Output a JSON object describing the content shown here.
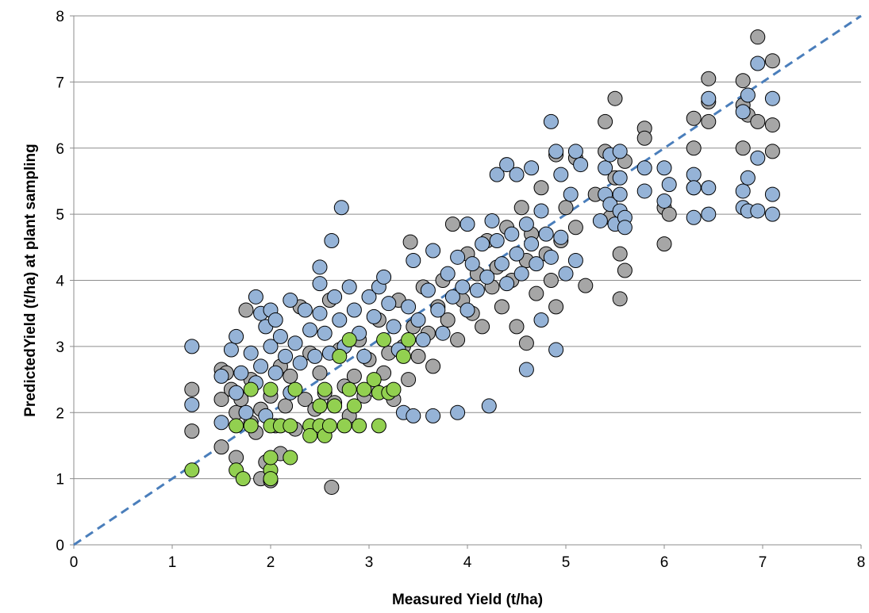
{
  "chart_data": {
    "type": "scatter",
    "title": "",
    "xlabel": "Measured Yield (t/ha)",
    "ylabel": "PredictedYield (t/ha) at plant sampling",
    "xlim": [
      0,
      8
    ],
    "ylim": [
      0,
      8
    ],
    "x_ticks": [
      "0",
      "1",
      "2",
      "3",
      "4",
      "5",
      "6",
      "7",
      "8"
    ],
    "y_ticks": [
      "0",
      "1",
      "2",
      "3",
      "4",
      "5",
      "6",
      "7",
      "8"
    ],
    "grid": "horizontal",
    "legend": "none",
    "reference_line": {
      "from": [
        0,
        0
      ],
      "to": [
        8,
        8
      ],
      "style": "dashed",
      "color": "#4a7ebb"
    },
    "series": [
      {
        "color": "#a6a6a6",
        "points": [
          [
            1.2,
            2.35
          ],
          [
            1.2,
            1.72
          ],
          [
            1.5,
            2.65
          ],
          [
            1.5,
            2.2
          ],
          [
            1.5,
            1.48
          ],
          [
            1.55,
            2.6
          ],
          [
            1.6,
            2.35
          ],
          [
            1.65,
            2.0
          ],
          [
            1.65,
            1.32
          ],
          [
            1.7,
            2.2
          ],
          [
            1.75,
            3.55
          ],
          [
            1.8,
            2.5
          ],
          [
            1.8,
            1.85
          ],
          [
            1.85,
            1.7
          ],
          [
            1.9,
            2.05
          ],
          [
            1.9,
            1.0
          ],
          [
            1.95,
            1.25
          ],
          [
            2.0,
            0.97
          ],
          [
            2.0,
            2.25
          ],
          [
            2.05,
            1.8
          ],
          [
            2.1,
            2.7
          ],
          [
            2.1,
            1.38
          ],
          [
            2.15,
            2.1
          ],
          [
            2.2,
            2.55
          ],
          [
            2.25,
            1.75
          ],
          [
            2.3,
            3.6
          ],
          [
            2.35,
            2.2
          ],
          [
            2.4,
            2.9
          ],
          [
            2.45,
            2.05
          ],
          [
            2.5,
            2.6
          ],
          [
            2.55,
            2.3
          ],
          [
            2.6,
            3.7
          ],
          [
            2.62,
            0.87
          ],
          [
            2.65,
            2.15
          ],
          [
            2.7,
            2.95
          ],
          [
            2.75,
            2.4
          ],
          [
            2.8,
            1.95
          ],
          [
            2.85,
            2.55
          ],
          [
            2.9,
            3.1
          ],
          [
            2.95,
            2.25
          ],
          [
            3.0,
            2.8
          ],
          [
            3.05,
            2.35
          ],
          [
            3.1,
            3.4
          ],
          [
            3.15,
            2.6
          ],
          [
            3.2,
            2.9
          ],
          [
            3.25,
            2.2
          ],
          [
            3.3,
            3.7
          ],
          [
            3.35,
            3.0
          ],
          [
            3.4,
            2.5
          ],
          [
            3.42,
            4.58
          ],
          [
            3.45,
            3.3
          ],
          [
            3.5,
            2.85
          ],
          [
            3.55,
            3.9
          ],
          [
            3.6,
            3.2
          ],
          [
            3.65,
            2.7
          ],
          [
            3.7,
            3.6
          ],
          [
            3.75,
            4.0
          ],
          [
            3.8,
            3.4
          ],
          [
            3.85,
            4.85
          ],
          [
            3.9,
            3.1
          ],
          [
            3.95,
            3.7
          ],
          [
            4.0,
            4.4
          ],
          [
            4.05,
            3.5
          ],
          [
            4.1,
            4.1
          ],
          [
            4.15,
            3.3
          ],
          [
            4.2,
            4.6
          ],
          [
            4.25,
            3.9
          ],
          [
            4.3,
            4.2
          ],
          [
            4.35,
            3.6
          ],
          [
            4.4,
            4.8
          ],
          [
            4.45,
            4.0
          ],
          [
            4.5,
            3.3
          ],
          [
            4.55,
            5.1
          ],
          [
            4.6,
            4.3
          ],
          [
            4.6,
            3.05
          ],
          [
            4.65,
            4.7
          ],
          [
            4.7,
            3.8
          ],
          [
            4.75,
            5.4
          ],
          [
            4.8,
            4.4
          ],
          [
            4.85,
            4.0
          ],
          [
            4.9,
            5.9
          ],
          [
            4.9,
            3.6
          ],
          [
            4.95,
            4.6
          ],
          [
            5.0,
            5.1
          ],
          [
            5.1,
            5.85
          ],
          [
            5.1,
            4.8
          ],
          [
            5.2,
            3.92
          ],
          [
            5.3,
            5.3
          ],
          [
            5.4,
            6.4
          ],
          [
            5.4,
            5.95
          ],
          [
            5.45,
            4.95
          ],
          [
            5.5,
            6.75
          ],
          [
            5.5,
            5.55
          ],
          [
            5.55,
            4.4
          ],
          [
            5.55,
            3.72
          ],
          [
            5.6,
            4.15
          ],
          [
            5.6,
            5.8
          ],
          [
            5.8,
            6.3
          ],
          [
            5.8,
            6.15
          ],
          [
            6.0,
            4.55
          ],
          [
            6.0,
            5.1
          ],
          [
            6.05,
            5.0
          ],
          [
            6.3,
            6.45
          ],
          [
            6.3,
            6.0
          ],
          [
            6.3,
            5.4
          ],
          [
            6.45,
            7.05
          ],
          [
            6.45,
            6.7
          ],
          [
            6.45,
            6.4
          ],
          [
            6.8,
            7.02
          ],
          [
            6.8,
            6.65
          ],
          [
            6.8,
            6.0
          ],
          [
            6.85,
            6.5
          ],
          [
            6.95,
            7.68
          ],
          [
            6.95,
            6.4
          ],
          [
            7.1,
            7.32
          ],
          [
            7.1,
            6.35
          ],
          [
            7.1,
            5.95
          ]
        ]
      },
      {
        "color": "#95b3d7",
        "points": [
          [
            1.2,
            3.0
          ],
          [
            1.2,
            2.12
          ],
          [
            1.5,
            2.55
          ],
          [
            1.5,
            1.85
          ],
          [
            1.6,
            2.95
          ],
          [
            1.65,
            3.15
          ],
          [
            1.65,
            2.3
          ],
          [
            1.7,
            2.6
          ],
          [
            1.75,
            2.0
          ],
          [
            1.8,
            2.9
          ],
          [
            1.85,
            3.75
          ],
          [
            1.85,
            2.45
          ],
          [
            1.9,
            3.5
          ],
          [
            1.9,
            2.7
          ],
          [
            1.95,
            3.3
          ],
          [
            1.95,
            1.95
          ],
          [
            2.0,
            3.55
          ],
          [
            2.0,
            3.0
          ],
          [
            2.05,
            3.4
          ],
          [
            2.05,
            2.6
          ],
          [
            2.1,
            3.15
          ],
          [
            2.15,
            2.85
          ],
          [
            2.2,
            3.7
          ],
          [
            2.2,
            2.3
          ],
          [
            2.25,
            3.05
          ],
          [
            2.3,
            2.75
          ],
          [
            2.35,
            3.55
          ],
          [
            2.4,
            3.25
          ],
          [
            2.45,
            2.85
          ],
          [
            2.5,
            4.2
          ],
          [
            2.5,
            3.95
          ],
          [
            2.5,
            3.5
          ],
          [
            2.55,
            3.2
          ],
          [
            2.6,
            2.9
          ],
          [
            2.62,
            4.6
          ],
          [
            2.65,
            3.75
          ],
          [
            2.7,
            3.4
          ],
          [
            2.72,
            5.1
          ],
          [
            2.75,
            3.0
          ],
          [
            2.8,
            3.9
          ],
          [
            2.85,
            3.55
          ],
          [
            2.9,
            3.2
          ],
          [
            2.95,
            2.85
          ],
          [
            3.0,
            3.75
          ],
          [
            3.05,
            3.45
          ],
          [
            3.1,
            3.9
          ],
          [
            3.15,
            4.05
          ],
          [
            3.2,
            3.65
          ],
          [
            3.25,
            3.3
          ],
          [
            3.3,
            2.95
          ],
          [
            3.35,
            2.0
          ],
          [
            3.4,
            3.6
          ],
          [
            3.45,
            1.95
          ],
          [
            3.45,
            4.3
          ],
          [
            3.5,
            3.4
          ],
          [
            3.55,
            3.1
          ],
          [
            3.6,
            3.85
          ],
          [
            3.65,
            1.95
          ],
          [
            3.65,
            4.45
          ],
          [
            3.7,
            3.55
          ],
          [
            3.75,
            3.2
          ],
          [
            3.8,
            4.1
          ],
          [
            3.85,
            3.75
          ],
          [
            3.9,
            2.0
          ],
          [
            3.9,
            4.35
          ],
          [
            3.95,
            3.9
          ],
          [
            4.0,
            4.85
          ],
          [
            4.0,
            3.55
          ],
          [
            4.05,
            4.25
          ],
          [
            4.1,
            3.85
          ],
          [
            4.15,
            4.55
          ],
          [
            4.2,
            4.05
          ],
          [
            4.22,
            2.1
          ],
          [
            4.25,
            4.9
          ],
          [
            4.3,
            4.6
          ],
          [
            4.3,
            5.6
          ],
          [
            4.35,
            4.25
          ],
          [
            4.4,
            3.95
          ],
          [
            4.4,
            5.75
          ],
          [
            4.45,
            4.7
          ],
          [
            4.5,
            4.4
          ],
          [
            4.5,
            5.6
          ],
          [
            4.55,
            4.1
          ],
          [
            4.6,
            4.85
          ],
          [
            4.6,
            2.65
          ],
          [
            4.65,
            4.55
          ],
          [
            4.65,
            5.7
          ],
          [
            4.7,
            4.25
          ],
          [
            4.75,
            5.05
          ],
          [
            4.75,
            3.4
          ],
          [
            4.8,
            4.7
          ],
          [
            4.85,
            6.4
          ],
          [
            4.85,
            4.35
          ],
          [
            4.9,
            5.95
          ],
          [
            4.9,
            2.95
          ],
          [
            4.95,
            4.65
          ],
          [
            4.95,
            5.6
          ],
          [
            5.0,
            4.1
          ],
          [
            5.05,
            5.3
          ],
          [
            5.1,
            5.95
          ],
          [
            5.1,
            4.3
          ],
          [
            5.15,
            5.75
          ],
          [
            5.35,
            4.9
          ],
          [
            5.4,
            5.7
          ],
          [
            5.4,
            5.3
          ],
          [
            5.45,
            5.9
          ],
          [
            5.45,
            5.15
          ],
          [
            5.5,
            4.85
          ],
          [
            5.55,
            5.55
          ],
          [
            5.55,
            5.3
          ],
          [
            5.55,
            5.05
          ],
          [
            5.55,
            5.95
          ],
          [
            5.6,
            4.95
          ],
          [
            5.6,
            4.8
          ],
          [
            5.8,
            5.7
          ],
          [
            5.8,
            5.35
          ],
          [
            6.0,
            5.2
          ],
          [
            6.0,
            5.7
          ],
          [
            6.05,
            5.45
          ],
          [
            6.3,
            5.6
          ],
          [
            6.3,
            5.4
          ],
          [
            6.3,
            4.95
          ],
          [
            6.45,
            6.75
          ],
          [
            6.45,
            5.4
          ],
          [
            6.45,
            5.0
          ],
          [
            6.8,
            6.55
          ],
          [
            6.8,
            5.35
          ],
          [
            6.8,
            5.1
          ],
          [
            6.85,
            6.8
          ],
          [
            6.85,
            5.55
          ],
          [
            6.85,
            5.05
          ],
          [
            6.95,
            7.28
          ],
          [
            6.95,
            5.85
          ],
          [
            6.95,
            5.05
          ],
          [
            7.1,
            6.75
          ],
          [
            7.1,
            5.3
          ],
          [
            7.1,
            5.0
          ]
        ]
      },
      {
        "color": "#92d050",
        "points": [
          [
            1.2,
            1.13
          ],
          [
            1.65,
            1.8
          ],
          [
            1.65,
            1.13
          ],
          [
            1.72,
            1.0
          ],
          [
            1.8,
            2.35
          ],
          [
            1.8,
            1.8
          ],
          [
            2.0,
            2.35
          ],
          [
            2.0,
            1.8
          ],
          [
            2.0,
            1.13
          ],
          [
            2.0,
            1.0
          ],
          [
            2.0,
            1.32
          ],
          [
            2.1,
            1.8
          ],
          [
            2.2,
            1.8
          ],
          [
            2.2,
            1.32
          ],
          [
            2.25,
            2.35
          ],
          [
            2.4,
            1.8
          ],
          [
            2.4,
            1.65
          ],
          [
            2.5,
            1.8
          ],
          [
            2.5,
            2.1
          ],
          [
            2.55,
            2.35
          ],
          [
            2.55,
            1.65
          ],
          [
            2.6,
            1.8
          ],
          [
            2.65,
            2.1
          ],
          [
            2.7,
            2.85
          ],
          [
            2.75,
            1.8
          ],
          [
            2.8,
            2.35
          ],
          [
            2.8,
            3.1
          ],
          [
            2.85,
            2.1
          ],
          [
            2.9,
            1.8
          ],
          [
            2.95,
            2.35
          ],
          [
            3.05,
            2.5
          ],
          [
            3.1,
            2.3
          ],
          [
            3.1,
            1.8
          ],
          [
            3.15,
            3.1
          ],
          [
            3.2,
            2.3
          ],
          [
            3.25,
            2.35
          ],
          [
            3.35,
            2.85
          ],
          [
            3.4,
            3.1
          ]
        ]
      }
    ]
  }
}
